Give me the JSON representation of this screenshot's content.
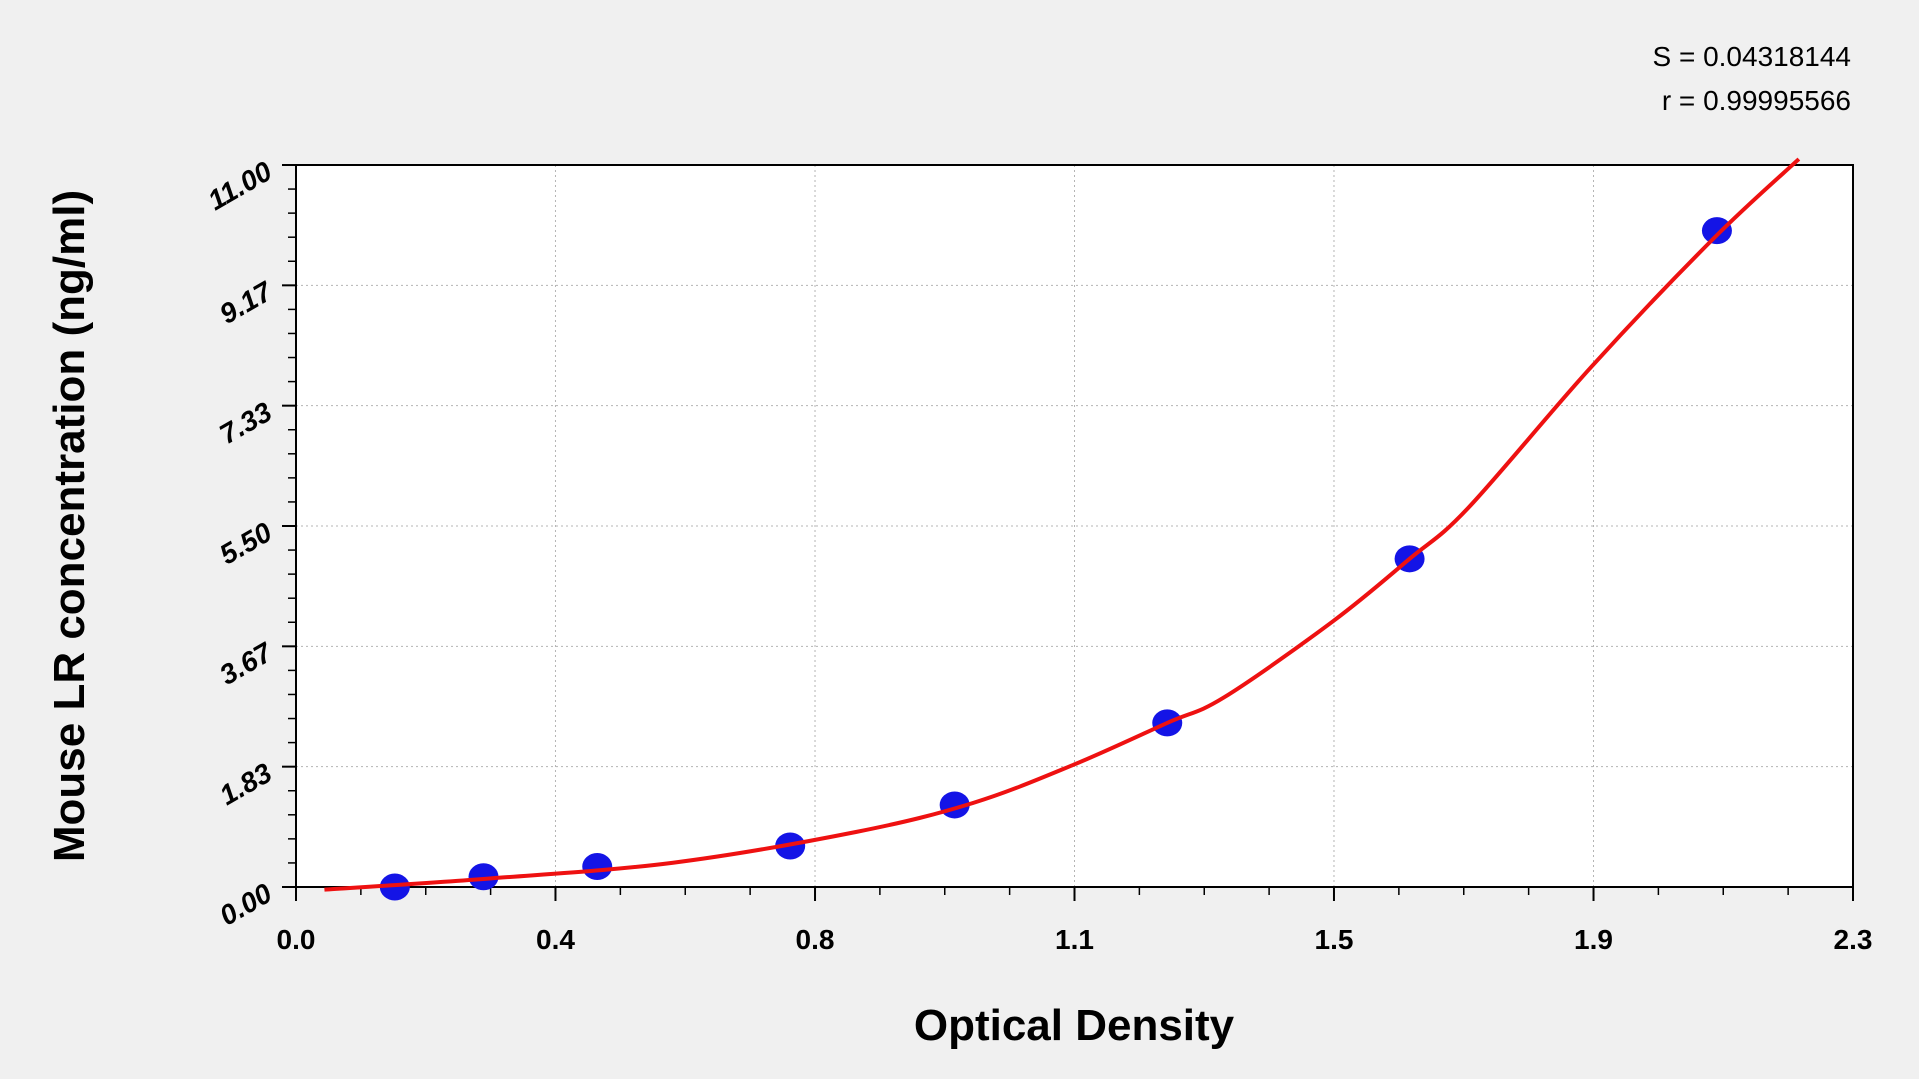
{
  "chart_data": {
    "type": "scatter",
    "x_label": "Optical Density",
    "y_label": "Mouse LR concentration (ng/ml)",
    "annotations": [
      "S = 0.04318144",
      "r = 0.99995566"
    ],
    "xlim": [
      0,
      2.3
    ],
    "xticks": [
      {
        "value": 0,
        "label": "0.0"
      },
      {
        "value": 0.3833,
        "label": "0.4"
      },
      {
        "value": 0.7667,
        "label": "0.8"
      },
      {
        "value": 1.15,
        "label": "1.1"
      },
      {
        "value": 1.5333,
        "label": "1.5"
      },
      {
        "value": 1.9167,
        "label": "1.9"
      },
      {
        "value": 2.3,
        "label": "2.3"
      }
    ],
    "ylim": [
      0,
      11
    ],
    "yticks": [
      {
        "value": 0,
        "label": "0.00"
      },
      {
        "value": 1.8333,
        "label": "1.83"
      },
      {
        "value": 3.6667,
        "label": "3.67"
      },
      {
        "value": 5.5,
        "label": "5.50"
      },
      {
        "value": 7.3333,
        "label": "7.33"
      },
      {
        "value": 9.1667,
        "label": "9.17"
      },
      {
        "value": 11,
        "label": "11.00"
      }
    ],
    "grid": true,
    "points": {
      "color": "#1414e6",
      "x": [
        0.146,
        0.277,
        0.445,
        0.73,
        0.973,
        1.287,
        1.645,
        2.099
      ],
      "y": [
        0,
        0.156,
        0.3125,
        0.625,
        1.25,
        2.5,
        5,
        10
      ]
    },
    "fit_curve": {
      "color": "#ee1111",
      "x": [
        0.042,
        0.286,
        0.557,
        0.828,
        1.0,
        1.148,
        1.287,
        1.371,
        1.532,
        1.645,
        1.732,
        1.913,
        2.094,
        2.22
      ],
      "y": [
        -0.04,
        0.13,
        0.37,
        0.84,
        1.28,
        1.86,
        2.5,
        2.89,
        4.05,
        5.0,
        5.78,
        7.92,
        9.88,
        11.09
      ]
    }
  }
}
